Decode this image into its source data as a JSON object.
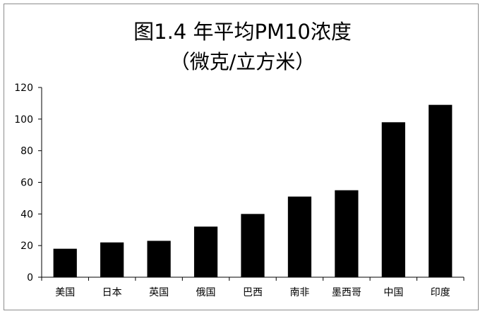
{
  "chart_data": {
    "type": "bar",
    "title": "图1.4 年平均PM10浓度",
    "subtitle": "（微克/立方米）",
    "categories": [
      "美国",
      "日本",
      "英国",
      "俄国",
      "巴西",
      "南非",
      "墨西哥",
      "中国",
      "印度"
    ],
    "values": [
      18,
      22,
      23,
      32,
      40,
      51,
      55,
      98,
      109
    ],
    "ylim": [
      0,
      120
    ],
    "yticks": [
      0,
      20,
      40,
      60,
      80,
      100,
      120
    ],
    "grid": false,
    "bar_color": "#000000"
  }
}
